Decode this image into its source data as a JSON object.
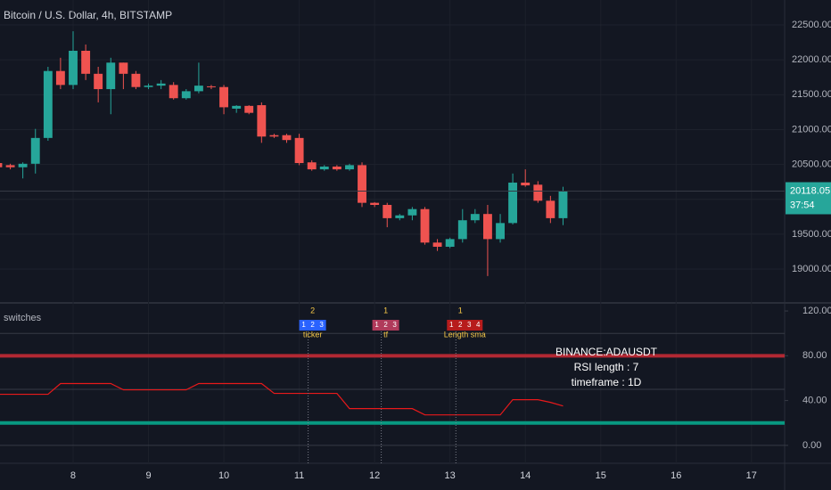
{
  "chart_data": [
    {
      "type": "candlestick",
      "title": "Bitcoin / U.S. Dollar, 4h, BITSTAMP",
      "x": [
        7,
        7.167,
        7.333,
        7.5,
        7.667,
        7.833,
        8,
        8.167,
        8.333,
        8.5,
        8.667,
        8.833,
        9,
        9.167,
        9.333,
        9.5,
        9.667,
        9.833,
        10,
        10.167,
        10.333,
        10.5,
        10.667,
        10.833,
        11,
        11.167,
        11.333,
        11.5,
        11.667,
        11.833,
        12,
        12.167,
        12.333,
        12.5,
        12.667,
        12.833,
        13,
        13.167,
        13.333,
        13.5,
        13.667,
        13.833,
        14,
        14.167,
        14.333,
        14.5
      ],
      "open": [
        20520,
        20490,
        20460,
        20510,
        20880,
        21840,
        21640,
        22130,
        21800,
        21580,
        21960,
        21800,
        21610,
        21630,
        21640,
        21450,
        21550,
        21620,
        21610,
        21300,
        21340,
        21350,
        20920,
        20920,
        20880,
        20530,
        20430,
        20470,
        20430,
        20490,
        19950,
        19920,
        19730,
        19770,
        19860,
        19380,
        19320,
        19430,
        19700,
        19790,
        19430,
        19660,
        20240,
        20210,
        19980,
        19730
      ],
      "high": [
        20560,
        20510,
        20530,
        21010,
        21900,
        22030,
        22410,
        22220,
        21900,
        22030,
        21960,
        21840,
        21660,
        21710,
        21680,
        21580,
        21960,
        21640,
        21640,
        21350,
        21350,
        21390,
        20940,
        20940,
        20940,
        20560,
        20490,
        20490,
        20510,
        20530,
        19960,
        19950,
        19790,
        19890,
        19890,
        19430,
        19450,
        19860,
        19860,
        19920,
        19790,
        20370,
        20430,
        20260,
        20050,
        20180
      ],
      "low": [
        20410,
        20430,
        20300,
        20370,
        20840,
        21580,
        21580,
        21710,
        21390,
        21220,
        21580,
        21580,
        21580,
        21580,
        21430,
        21430,
        21520,
        21580,
        21220,
        21240,
        21220,
        20810,
        20880,
        20810,
        20490,
        20410,
        20410,
        20410,
        20410,
        19890,
        19890,
        19600,
        19700,
        19700,
        19350,
        19260,
        19300,
        19380,
        19660,
        18900,
        19380,
        19640,
        20180,
        19950,
        19660,
        19630
      ],
      "close": [
        20460,
        20460,
        20510,
        20880,
        21840,
        21640,
        22130,
        21800,
        21580,
        21960,
        21800,
        21610,
        21630,
        21660,
        21450,
        21550,
        21630,
        21610,
        21320,
        21340,
        21240,
        20900,
        20900,
        20850,
        20520,
        20430,
        20470,
        20430,
        20490,
        19950,
        19920,
        19730,
        19770,
        19860,
        19380,
        19320,
        19430,
        19700,
        19790,
        19430,
        19660,
        20240,
        20200,
        19980,
        19730,
        20118.05
      ],
      "up_color": "#26a69a",
      "down_color": "#ef5350",
      "countdown": "37:54",
      "xlim": [
        7.03,
        17.44
      ],
      "xticks": [
        8,
        9,
        10,
        11,
        12,
        13,
        14,
        15,
        16,
        17
      ],
      "ylim": [
        18515,
        22858
      ],
      "yticks": [
        {
          "value": 19000,
          "label": "19000.00"
        },
        {
          "value": 19500,
          "label": "19500.00"
        },
        {
          "value": 20000,
          "label": "20000.00"
        },
        {
          "value": 20500,
          "label": "20500.00"
        },
        {
          "value": 21000,
          "label": "21000.00"
        },
        {
          "value": 21500,
          "label": "21500.00"
        },
        {
          "value": 22000,
          "label": "22000.00"
        },
        {
          "value": 22500,
          "label": "22500.00"
        }
      ],
      "grid": true
    },
    {
      "type": "line",
      "title": "switches",
      "x": [
        7,
        7.167,
        7.333,
        7.5,
        7.667,
        7.833,
        8,
        8.167,
        8.333,
        8.5,
        8.667,
        8.833,
        9,
        9.167,
        9.333,
        9.5,
        9.667,
        9.833,
        10,
        10.167,
        10.333,
        10.5,
        10.667,
        10.833,
        11,
        11.167,
        11.333,
        11.5,
        11.667,
        11.833,
        12,
        12.167,
        12.333,
        12.5,
        12.667,
        12.833,
        13,
        13.167,
        13.333,
        13.5,
        13.667,
        13.833,
        14,
        14.167,
        14.333,
        14.5
      ],
      "values": [
        45.6,
        45.6,
        45.6,
        45.6,
        45.6,
        55.2,
        55.2,
        55.2,
        55.2,
        55.2,
        49.6,
        49.6,
        49.6,
        49.6,
        49.6,
        49.6,
        55.2,
        55.2,
        55.2,
        55.2,
        55.2,
        55.2,
        46.4,
        46.4,
        46.4,
        46.4,
        46.4,
        46.4,
        32.8,
        32.8,
        32.8,
        32.8,
        32.8,
        32.8,
        27.2,
        27.2,
        27.2,
        27.2,
        27.2,
        27.2,
        27.2,
        40.8,
        40.8,
        40.8,
        38.4,
        35.2
      ],
      "color": "#e8191b",
      "levels": [
        {
          "value": 80,
          "color": "#b22833"
        },
        {
          "value": 20,
          "color": "#089981"
        }
      ],
      "guides": [
        100,
        50,
        0
      ],
      "xlim": [
        7.03,
        17.44
      ],
      "ylim": [
        -16,
        127.2
      ],
      "yticks": [
        {
          "value": 0,
          "label": "0.00"
        },
        {
          "value": 40,
          "label": "40.00"
        },
        {
          "value": 80,
          "label": "80.00"
        },
        {
          "value": 120,
          "label": "120.00"
        }
      ],
      "switches": [
        {
          "x": 11.0,
          "active": "2",
          "options": [
            "1",
            "2",
            "3"
          ],
          "label": "ticker",
          "color": "#2962ff"
        },
        {
          "x": 11.97,
          "active": "1",
          "options": [
            "1",
            "2",
            "3"
          ],
          "label": "tf",
          "color": "#b03a5b"
        },
        {
          "x": 12.96,
          "active": "1",
          "options": [
            "1",
            "2",
            "3",
            "4"
          ],
          "label": "Length sma",
          "color": "#b71c1c"
        }
      ],
      "table": [
        "BINANCE:ADAUSDT",
        "RSI length :  7",
        "timeframe :  1D"
      ]
    }
  ]
}
